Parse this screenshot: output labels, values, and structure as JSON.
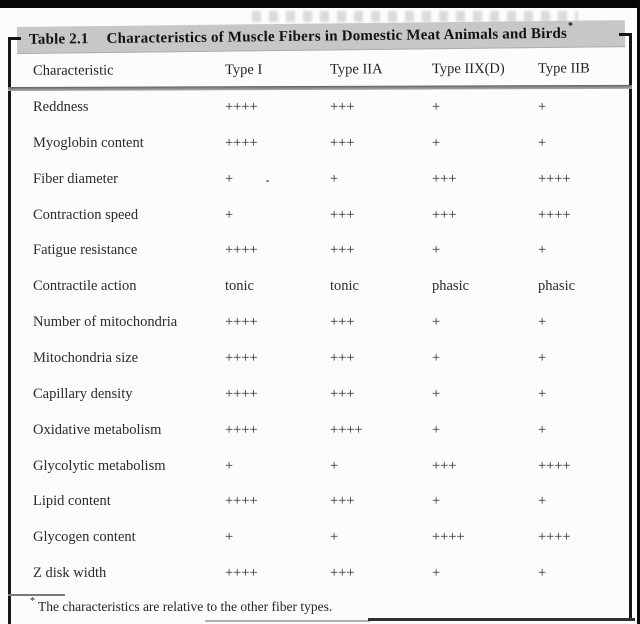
{
  "table": {
    "label": "Table 2.1",
    "title": "Characteristics of Muscle Fibers in Domestic Meat Animals and Birds",
    "title_marker": "*",
    "columns": [
      "Characteristic",
      "Type I",
      "Type IIA",
      "Type IIX(D)",
      "Type IIB"
    ],
    "rows": [
      {
        "characteristic": "Reddness",
        "values": [
          "++++",
          "+++",
          "+",
          "+"
        ]
      },
      {
        "characteristic": "Myoglobin content",
        "values": [
          "++++",
          "+++",
          "+",
          "+"
        ]
      },
      {
        "characteristic": "Fiber diameter",
        "values": [
          "+",
          "+",
          "+++",
          "++++"
        ]
      },
      {
        "characteristic": "Contraction speed",
        "values": [
          "+",
          "+++",
          "+++",
          "++++"
        ]
      },
      {
        "characteristic": "Fatigue resistance",
        "values": [
          "++++",
          "+++",
          "+",
          "+"
        ]
      },
      {
        "characteristic": "Contractile action",
        "values": [
          "tonic",
          "tonic",
          "phasic",
          "phasic"
        ]
      },
      {
        "characteristic": "Number of mitochondria",
        "values": [
          "++++",
          "+++",
          "+",
          "+"
        ]
      },
      {
        "characteristic": "Mitochondria size",
        "values": [
          "++++",
          "+++",
          "+",
          "+"
        ]
      },
      {
        "characteristic": "Capillary density",
        "values": [
          "++++",
          "+++",
          "+",
          "+"
        ]
      },
      {
        "characteristic": "Oxidative metabolism",
        "values": [
          "++++",
          "++++",
          "+",
          "+"
        ]
      },
      {
        "characteristic": "Glycolytic metabolism",
        "values": [
          "+",
          "+",
          "+++",
          "++++"
        ]
      },
      {
        "characteristic": "Lipid content",
        "values": [
          "++++",
          "+++",
          "+",
          "+"
        ]
      },
      {
        "characteristic": "Glycogen content",
        "values": [
          "+",
          "+",
          "++++",
          "++++"
        ]
      },
      {
        "characteristic": "Z disk width",
        "values": [
          "++++",
          "+++",
          "+",
          "+"
        ]
      }
    ],
    "footnote": {
      "marker": "*",
      "text": "The characteristics are relative to the other fiber types."
    }
  },
  "colors": {
    "title_band_bg": "#c7c7c7",
    "frame": "#161616",
    "header_rule": "#8d8d8d",
    "body_text": "#2b2b2b"
  }
}
